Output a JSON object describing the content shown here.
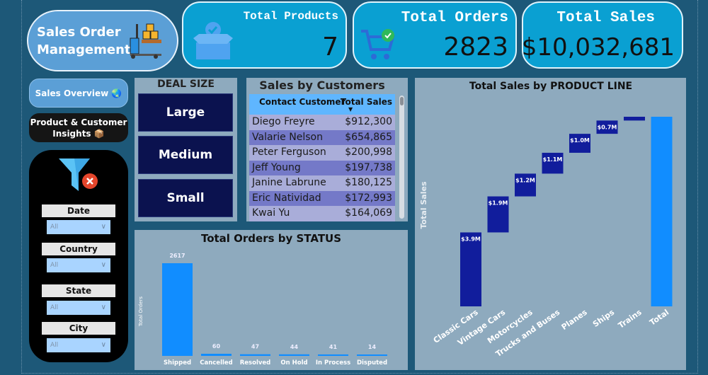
{
  "header": {
    "title_line1": "Sales Order",
    "title_line2": "Management"
  },
  "kpis": [
    {
      "label": "Total Products",
      "value": "7",
      "icon": "box-check-icon"
    },
    {
      "label": "Total Orders",
      "value": "2823",
      "icon": "cart-check-icon"
    },
    {
      "label": "Total Sales",
      "value": "$10,032,681"
    }
  ],
  "nav": {
    "overview": "Sales Overview 🌏",
    "insights_line1": "Product & Customer",
    "insights_line2": "Insights 📦"
  },
  "filters": [
    {
      "label": "Date",
      "value": "All"
    },
    {
      "label": "Country",
      "value": "All"
    },
    {
      "label": "State",
      "value": "All"
    },
    {
      "label": "City",
      "value": "All"
    }
  ],
  "deal_size": {
    "title": "DEAL SIZE",
    "options": [
      "Large",
      "Medium",
      "Small"
    ]
  },
  "customers": {
    "title": "Sales by Customers",
    "col_name": "Contact Customer",
    "col_sales": "Total Sales",
    "rows": [
      {
        "name": "Diego Freyre",
        "sales": "$912,300"
      },
      {
        "name": "Valarie Nelson",
        "sales": "$654,865"
      },
      {
        "name": "Peter Ferguson",
        "sales": "$200,998"
      },
      {
        "name": "Jeff Young",
        "sales": "$197,738"
      },
      {
        "name": "Janine Labrune",
        "sales": "$180,125"
      },
      {
        "name": "Eric Natividad",
        "sales": "$172,993"
      },
      {
        "name": "Kwai Yu",
        "sales": "$164,069"
      }
    ]
  },
  "chart_data": [
    {
      "type": "bar",
      "title": "Total Orders by STATUS",
      "ylabel": "Total Orders",
      "xlabel": "",
      "categories": [
        "Shipped",
        "Cancelled",
        "Resolved",
        "On Hold",
        "In Process",
        "Disputed"
      ],
      "values": [
        2617,
        60,
        47,
        44,
        41,
        14
      ],
      "color": "#118dff"
    },
    {
      "type": "bar",
      "subtype": "waterfall",
      "title": "Total Sales by PRODUCT LINE",
      "ylabel": "Total Sales",
      "xlabel": "",
      "categories": [
        "Classic Cars",
        "Vintage Cars",
        "Motorcycles",
        "Trucks and Buses",
        "Planes",
        "Ships",
        "Trains",
        "Total"
      ],
      "values": [
        3.9,
        1.9,
        1.2,
        1.1,
        1.0,
        0.7,
        0.2,
        10.0
      ],
      "labels": [
        "$3.9M",
        "$1.9M",
        "$1.2M",
        "$1.1M",
        "$1.0M",
        "$0.7M",
        "",
        ""
      ],
      "unit": "$M",
      "color_step": "#111d9c",
      "color_total": "#118dff"
    }
  ]
}
